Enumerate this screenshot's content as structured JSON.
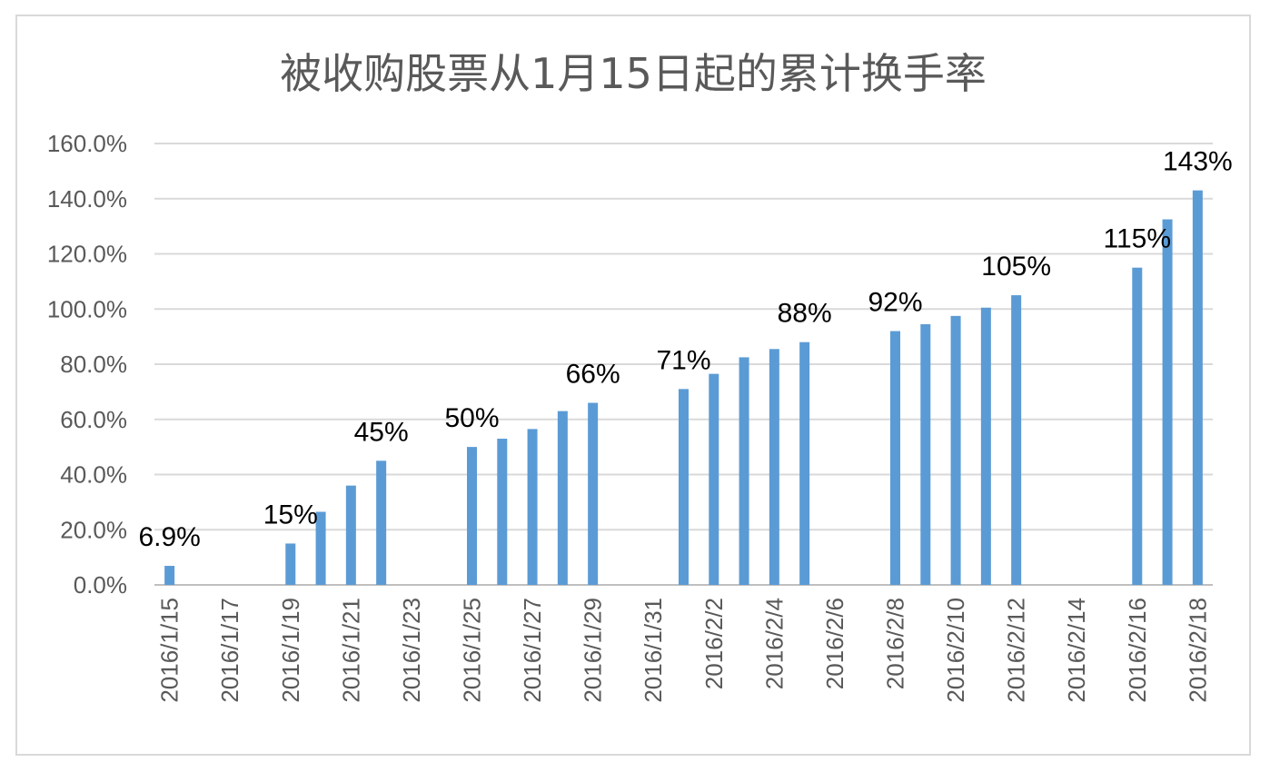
{
  "chart_data": {
    "type": "bar",
    "title": "被收购股票从1月15日起的累计换手率",
    "xlabel": "",
    "ylabel": "",
    "ylim": [
      0,
      160
    ],
    "y_ticks": [
      "0.0%",
      "20.0%",
      "40.0%",
      "60.0%",
      "80.0%",
      "100.0%",
      "120.0%",
      "140.0%",
      "160.0%"
    ],
    "y_tick_values": [
      0,
      20,
      40,
      60,
      80,
      100,
      120,
      140,
      160
    ],
    "x_tick_labels": [
      "2016/1/15",
      "2016/1/17",
      "2016/1/19",
      "2016/1/21",
      "2016/1/23",
      "2016/1/25",
      "2016/1/27",
      "2016/1/29",
      "2016/1/31",
      "2016/2/2",
      "2016/2/4",
      "2016/2/6",
      "2016/2/8",
      "2016/2/10",
      "2016/2/12",
      "2016/2/14",
      "2016/2/16",
      "2016/2/18"
    ],
    "categories": [
      "2016/1/15",
      "2016/1/16",
      "2016/1/17",
      "2016/1/18",
      "2016/1/19",
      "2016/1/20",
      "2016/1/21",
      "2016/1/22",
      "2016/1/23",
      "2016/1/24",
      "2016/1/25",
      "2016/1/26",
      "2016/1/27",
      "2016/1/28",
      "2016/1/29",
      "2016/1/30",
      "2016/1/31",
      "2016/2/1",
      "2016/2/2",
      "2016/2/3",
      "2016/2/4",
      "2016/2/5",
      "2016/2/6",
      "2016/2/7",
      "2016/2/8",
      "2016/2/9",
      "2016/2/10",
      "2016/2/11",
      "2016/2/12",
      "2016/2/13",
      "2016/2/14",
      "2016/2/15",
      "2016/2/16",
      "2016/2/17",
      "2016/2/18"
    ],
    "values": [
      6.9,
      null,
      null,
      null,
      15,
      26.5,
      36,
      45,
      null,
      null,
      50,
      53,
      56.5,
      63,
      66,
      null,
      null,
      71,
      76.5,
      82.5,
      85.5,
      88,
      null,
      null,
      92,
      94.5,
      97.5,
      100.5,
      105,
      null,
      null,
      null,
      115,
      132.5,
      143
    ],
    "data_labels": [
      {
        "category": "2016/1/15",
        "text": "6.9%"
      },
      {
        "category": "2016/1/19",
        "text": "15%"
      },
      {
        "category": "2016/1/22",
        "text": "45%"
      },
      {
        "category": "2016/1/25",
        "text": "50%"
      },
      {
        "category": "2016/1/29",
        "text": "66%"
      },
      {
        "category": "2016/2/1",
        "text": "71%"
      },
      {
        "category": "2016/2/5",
        "text": "88%"
      },
      {
        "category": "2016/2/8",
        "text": "92%"
      },
      {
        "category": "2016/2/12",
        "text": "105%"
      },
      {
        "category": "2016/2/16",
        "text": "115%"
      },
      {
        "category": "2016/2/18",
        "text": "143%"
      }
    ],
    "grid": true,
    "legend": "none",
    "bar_color": "#5b9bd5"
  }
}
